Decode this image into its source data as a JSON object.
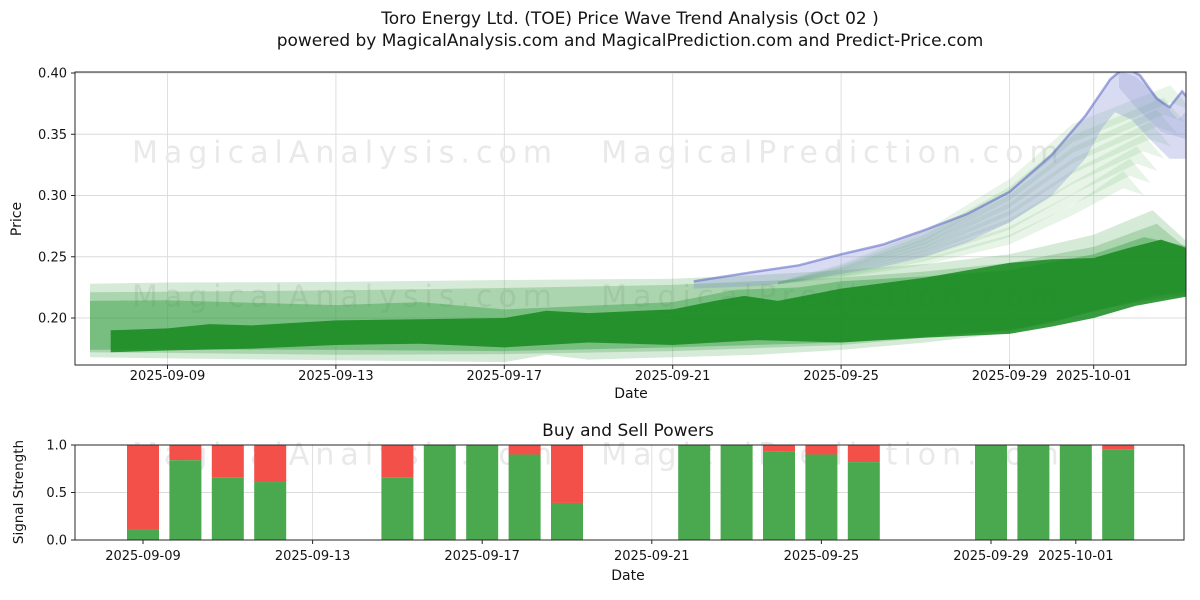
{
  "figure": {
    "title_line1": "Toro Energy Ltd. (TOE) Price Wave Trend Analysis (Oct 02 )",
    "title_line2": "powered by MagicalAnalysis.com and MagicalPrediction.com and Predict-Price.com",
    "watermark_left": "MagicalAnalysis.com",
    "watermark_right": "MagicalPrediction.com",
    "background": "#ffffff",
    "grid_color": "#dcdcdc",
    "spine_color": "#262626"
  },
  "chart_data": [
    {
      "id": "price_wave_trend",
      "type": "area",
      "xlabel": "Date",
      "ylabel": "Price",
      "x_tick_labels": [
        "2025-09-09",
        "2025-09-13",
        "2025-09-17",
        "2025-09-21",
        "2025-09-25",
        "2025-09-29",
        "2025-10-01"
      ],
      "x_tick_days": [
        0,
        4,
        8,
        12,
        16,
        20,
        22
      ],
      "y_tick_labels": [
        "0.40",
        "0.35",
        "0.30",
        "0.25",
        "0.20"
      ],
      "y_tick_values": [
        0.4,
        0.35,
        0.3,
        0.25,
        0.2
      ],
      "ylim": [
        0.162,
        0.401
      ],
      "xlim_days": [
        -2.2,
        24.2
      ],
      "grid": true,
      "legend": "none",
      "bands": [
        {
          "name": "envelope-outer-light",
          "color": "#3f9f47",
          "opacity": 0.22,
          "hi": [
            [
              -1.84,
              0.228
            ],
            [
              0,
              0.229
            ],
            [
              4,
              0.2295
            ],
            [
              8,
              0.231
            ],
            [
              12,
              0.232
            ],
            [
              14,
              0.235
            ],
            [
              16,
              0.239
            ],
            [
              18,
              0.244
            ],
            [
              20,
              0.252
            ],
            [
              22,
              0.268
            ],
            [
              23.4,
              0.288
            ],
            [
              24.35,
              0.258
            ]
          ],
          "lo": [
            [
              -1.84,
              0.168
            ],
            [
              0,
              0.167
            ],
            [
              4,
              0.1655
            ],
            [
              8,
              0.164
            ],
            [
              9,
              0.17
            ],
            [
              10,
              0.166
            ],
            [
              12,
              0.168
            ],
            [
              14,
              0.17
            ],
            [
              16,
              0.174
            ],
            [
              18,
              0.18
            ],
            [
              20,
              0.188
            ],
            [
              22,
              0.206
            ],
            [
              23.4,
              0.218
            ],
            [
              24.35,
              0.221
            ]
          ]
        },
        {
          "name": "envelope-mid-light",
          "color": "#3f9f47",
          "opacity": 0.28,
          "hi": [
            [
              -1.84,
              0.221
            ],
            [
              0,
              0.2215
            ],
            [
              4,
              0.2225
            ],
            [
              8,
              0.2245
            ],
            [
              12,
              0.227
            ],
            [
              14,
              0.23
            ],
            [
              16,
              0.233
            ],
            [
              18,
              0.238
            ],
            [
              20,
              0.245
            ],
            [
              22,
              0.258
            ],
            [
              23.5,
              0.277
            ],
            [
              24.35,
              0.2525
            ]
          ],
          "lo": [
            [
              -1.84,
              0.172
            ],
            [
              0,
              0.1715
            ],
            [
              4,
              0.17
            ],
            [
              8,
              0.1705
            ],
            [
              12,
              0.173
            ],
            [
              16,
              0.178
            ],
            [
              20,
              0.19
            ],
            [
              22,
              0.205
            ],
            [
              23.5,
              0.218
            ],
            [
              24.35,
              0.2225
            ]
          ]
        },
        {
          "name": "envelope-medium",
          "color": "#2f9a3c",
          "opacity": 0.4,
          "hi": [
            [
              -1.84,
              0.214
            ],
            [
              0,
              0.2145
            ],
            [
              2,
              0.2125
            ],
            [
              4,
              0.2105
            ],
            [
              6,
              0.213
            ],
            [
              8,
              0.207
            ],
            [
              10,
              0.21
            ],
            [
              12,
              0.213
            ],
            [
              13.5,
              0.223
            ],
            [
              15,
              0.225
            ],
            [
              16,
              0.23
            ],
            [
              18,
              0.234
            ],
            [
              20,
              0.239
            ],
            [
              22,
              0.252
            ],
            [
              23.2,
              0.266
            ],
            [
              24.3,
              0.258
            ]
          ],
          "lo": [
            [
              -1.84,
              0.174
            ],
            [
              0,
              0.1745
            ],
            [
              4,
              0.174
            ],
            [
              8,
              0.173
            ],
            [
              12,
              0.176
            ],
            [
              16,
              0.18
            ],
            [
              18,
              0.185
            ],
            [
              20,
              0.19
            ],
            [
              21,
              0.196
            ],
            [
              22,
              0.206
            ],
            [
              23.2,
              0.214
            ],
            [
              24.3,
              0.219
            ]
          ]
        },
        {
          "name": "core-band",
          "color": "#168a1f",
          "opacity": 0.85,
          "hi": [
            [
              -1.35,
              0.19
            ],
            [
              0,
              0.1915
            ],
            [
              1,
              0.195
            ],
            [
              2,
              0.194
            ],
            [
              4,
              0.198
            ],
            [
              6,
              0.199
            ],
            [
              8,
              0.2
            ],
            [
              9,
              0.206
            ],
            [
              10,
              0.204
            ],
            [
              12,
              0.207
            ],
            [
              13,
              0.214
            ],
            [
              13.7,
              0.218
            ],
            [
              14.5,
              0.214
            ],
            [
              16,
              0.224
            ],
            [
              18,
              0.233
            ],
            [
              20,
              0.245
            ],
            [
              21,
              0.248
            ],
            [
              22,
              0.249
            ],
            [
              22.8,
              0.257
            ],
            [
              23.6,
              0.264
            ],
            [
              24.3,
              0.256
            ]
          ],
          "lo": [
            [
              -1.35,
              0.172
            ],
            [
              0,
              0.1735
            ],
            [
              2,
              0.175
            ],
            [
              4,
              0.178
            ],
            [
              6,
              0.179
            ],
            [
              8,
              0.176
            ],
            [
              10,
              0.18
            ],
            [
              12,
              0.178
            ],
            [
              14,
              0.182
            ],
            [
              16,
              0.18
            ],
            [
              18,
              0.184
            ],
            [
              20,
              0.187
            ],
            [
              21,
              0.193
            ],
            [
              22,
              0.2
            ],
            [
              23,
              0.21
            ],
            [
              24.3,
              0.218
            ]
          ]
        }
      ],
      "fan": {
        "count": 8,
        "color": "#5cb861",
        "opacity": 0.15,
        "days": [
          14.5,
          16,
          18,
          20,
          21.5
        ],
        "hi_base": [
          0.2295,
          0.2355,
          0.249,
          0.268,
          0.292
        ],
        "hi_step": [
          0,
          0.0012,
          0.0032,
          0.0065,
          0.0095
        ],
        "lo_base": [
          0.2275,
          0.2325,
          0.2435,
          0.26,
          0.284
        ],
        "lo_step": [
          0,
          0.001,
          0.0028,
          0.006,
          0.0085
        ],
        "end_day_base": 22.7,
        "end_day_step": 0.16,
        "end_hi_base": 0.32,
        "end_hi_step": 0.01,
        "end_thickness": 0.014,
        "tip_dx": 0.5,
        "tip_drop": 0.02
      },
      "blue_band": {
        "name": "projection-blue-band",
        "color": "#7f88d2",
        "opacity": 0.3,
        "edge_color": "#5a66c4",
        "edge_opacity": 0.55,
        "peak": {
          "date": "2025-10-01",
          "value": 0.405
        },
        "hi": [
          [
            12.5,
            0.23
          ],
          [
            14,
            0.238
          ],
          [
            15,
            0.243
          ],
          [
            16,
            0.252
          ],
          [
            17,
            0.26
          ],
          [
            18,
            0.272
          ],
          [
            19,
            0.285
          ],
          [
            20,
            0.303
          ],
          [
            21,
            0.333
          ],
          [
            21.8,
            0.365
          ],
          [
            22.4,
            0.395
          ],
          [
            22.75,
            0.405
          ],
          [
            23.1,
            0.398
          ],
          [
            23.5,
            0.379
          ],
          [
            23.8,
            0.372
          ],
          [
            24.1,
            0.385
          ],
          [
            24.35,
            0.375
          ]
        ],
        "lo": [
          [
            12.5,
            0.224
          ],
          [
            14,
            0.226
          ],
          [
            15,
            0.23
          ],
          [
            16,
            0.236
          ],
          [
            17,
            0.242
          ],
          [
            18,
            0.25
          ],
          [
            19,
            0.262
          ],
          [
            20,
            0.278
          ],
          [
            21,
            0.3
          ],
          [
            21.8,
            0.33
          ],
          [
            22.2,
            0.355
          ],
          [
            22.5,
            0.368
          ],
          [
            22.9,
            0.362
          ],
          [
            23.3,
            0.347
          ],
          [
            23.8,
            0.33
          ],
          [
            24.35,
            0.33
          ]
        ],
        "fold": [
          [
            22.6,
            0.402
          ],
          [
            23.0,
            0.397
          ],
          [
            23.6,
            0.378
          ],
          [
            24.0,
            0.362
          ],
          [
            24.3,
            0.372
          ],
          [
            24.3,
            0.345
          ],
          [
            23.6,
            0.352
          ],
          [
            23.0,
            0.372
          ],
          [
            22.6,
            0.388
          ]
        ],
        "fold_opacity": 0.22
      }
    },
    {
      "id": "buy_sell_powers",
      "type": "bar",
      "title": "Buy and Sell Powers",
      "xlabel": "Date",
      "ylabel": "Signal Strength",
      "x_tick_labels": [
        "2025-09-09",
        "2025-09-13",
        "2025-09-17",
        "2025-09-21",
        "2025-09-25",
        "2025-09-29",
        "2025-10-01"
      ],
      "x_tick_days": [
        0,
        4,
        8,
        12,
        16,
        20,
        22
      ],
      "y_tick_labels": [
        "1.0",
        "0.5",
        "0.0"
      ],
      "y_tick_values": [
        1.0,
        0.5,
        0.0
      ],
      "ylim": [
        0.0,
        1.0
      ],
      "colors": {
        "buy": "#4aa84e",
        "sell": "#f4504a"
      },
      "bars": [
        {
          "date": "2025-09-09",
          "day": 0,
          "buy": 0.11,
          "sell": 0.89
        },
        {
          "date": "2025-09-10",
          "day": 1,
          "buy": 0.84,
          "sell": 0.16
        },
        {
          "date": "2025-09-11",
          "day": 2,
          "buy": 0.66,
          "sell": 0.34
        },
        {
          "date": "2025-09-12",
          "day": 3,
          "buy": 0.61,
          "sell": 0.39
        },
        {
          "date": "2025-09-15",
          "day": 6,
          "buy": 0.66,
          "sell": 0.34
        },
        {
          "date": "2025-09-16",
          "day": 7,
          "buy": 1.0,
          "sell": 0.0
        },
        {
          "date": "2025-09-17",
          "day": 8,
          "buy": 1.0,
          "sell": 0.0
        },
        {
          "date": "2025-09-18",
          "day": 9,
          "buy": 0.9,
          "sell": 0.1
        },
        {
          "date": "2025-09-19",
          "day": 10,
          "buy": 0.39,
          "sell": 0.61
        },
        {
          "date": "2025-09-22",
          "day": 13,
          "buy": 1.0,
          "sell": 0.0
        },
        {
          "date": "2025-09-23",
          "day": 14,
          "buy": 1.0,
          "sell": 0.0
        },
        {
          "date": "2025-09-24",
          "day": 15,
          "buy": 0.93,
          "sell": 0.07
        },
        {
          "date": "2025-09-25",
          "day": 16,
          "buy": 0.9,
          "sell": 0.1
        },
        {
          "date": "2025-09-26",
          "day": 17,
          "buy": 0.82,
          "sell": 0.18
        },
        {
          "date": "2025-09-29",
          "day": 20,
          "buy": 1.0,
          "sell": 0.0
        },
        {
          "date": "2025-09-30",
          "day": 21,
          "buy": 1.0,
          "sell": 0.0
        },
        {
          "date": "2025-10-01",
          "day": 22,
          "buy": 1.0,
          "sell": 0.0
        },
        {
          "date": "2025-10-02",
          "day": 23,
          "buy": 0.95,
          "sell": 0.05
        }
      ]
    }
  ]
}
